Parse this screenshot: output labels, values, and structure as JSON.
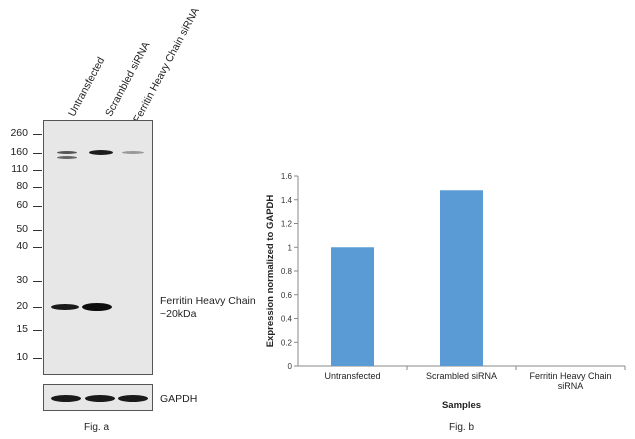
{
  "fig_a": {
    "lanes": [
      "Untransfected",
      "Scrambled siRNA",
      "Ferritin Heavy Chain siRNA"
    ],
    "markers": [
      "260",
      "160",
      "110",
      "80",
      "60",
      "50",
      "40",
      "30",
      "20",
      "15",
      "10"
    ],
    "band_label_line1": "Ferritin Heavy Chain",
    "band_label_line2": "~20kDa",
    "loading_label": "GAPDH",
    "caption": "Fig. a"
  },
  "fig_b": {
    "caption": "Fig. b"
  },
  "chart_data": {
    "type": "bar",
    "title": "",
    "categories": [
      "Untransfected",
      "Scrambled siRNA",
      "Ferritin Heavy Chain siRNA"
    ],
    "values": [
      1.0,
      1.48,
      0.0
    ],
    "xlabel": "Samples",
    "ylabel": "Expression normalized to GAPDH",
    "ylim": [
      0,
      1.6
    ],
    "yticks": [
      "0",
      "0.2",
      "0.4",
      "0.6",
      "0.8",
      "1",
      "1.2",
      "1.4",
      "1.6"
    ],
    "bar_color": "#5b9bd5",
    "grid": false,
    "legend": "none"
  }
}
